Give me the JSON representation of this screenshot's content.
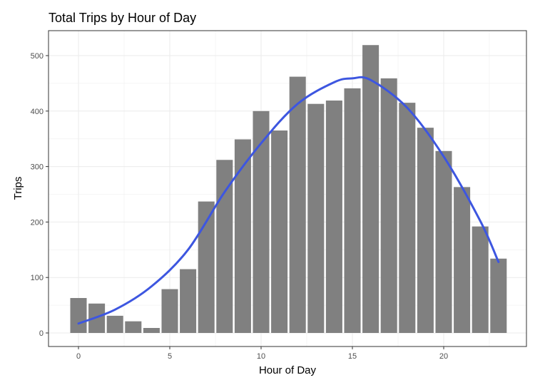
{
  "chart_data": {
    "type": "bar",
    "title": "Total Trips by Hour of Day",
    "xlabel": "Hour of Day",
    "ylabel": "Trips",
    "x": [
      0,
      1,
      2,
      3,
      4,
      5,
      6,
      7,
      8,
      9,
      10,
      11,
      12,
      13,
      14,
      15,
      16,
      17,
      18,
      19,
      20,
      21,
      22,
      23
    ],
    "values": [
      63,
      53,
      31,
      21,
      9,
      79,
      115,
      237,
      312,
      349,
      400,
      365,
      462,
      413,
      419,
      441,
      519,
      459,
      415,
      370,
      328,
      263,
      192,
      134
    ],
    "xlim": [
      -0.5,
      23.5
    ],
    "ylim": [
      0,
      520
    ],
    "x_ticks": [
      "0",
      "5",
      "10",
      "15",
      "20"
    ],
    "x_tick_values": [
      0,
      5,
      10,
      15,
      20
    ],
    "y_ticks": [
      "0",
      "100",
      "200",
      "300",
      "400",
      "500"
    ],
    "y_tick_values": [
      0,
      100,
      200,
      300,
      400,
      500
    ],
    "grid": true,
    "smooth_curve": {
      "color": "#3d56e0",
      "x": [
        0,
        2,
        4,
        6,
        8,
        10,
        12,
        14,
        15,
        16,
        18,
        20,
        22,
        23
      ],
      "y": [
        17,
        42,
        84,
        150,
        254,
        342,
        413,
        452,
        459,
        456,
        406,
        318,
        202,
        128
      ]
    },
    "colors": {
      "bar": "#808080",
      "curve": "#3d56e0"
    }
  }
}
